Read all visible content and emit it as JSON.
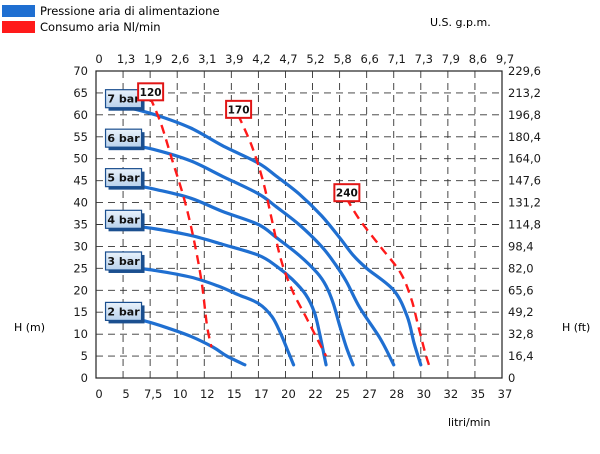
{
  "legend": [
    {
      "label": "Pressione aria di alimentazione",
      "color": "#1f6fd1"
    },
    {
      "label": "Consumo aria Nl/min",
      "color": "#ff1a1a"
    }
  ],
  "chart_data": {
    "type": "line",
    "x_axis_bottom": {
      "label": "litri/min",
      "ticks": [
        "0",
        "5",
        "7,5",
        "10",
        "12",
        "15",
        "17",
        "20",
        "22",
        "25",
        "27",
        "28",
        "30",
        "32",
        "35",
        "37"
      ]
    },
    "x_axis_top": {
      "label": "U.S. g.p.m.",
      "ticks": [
        "0",
        "1,3",
        "1,9",
        "2,6",
        "3,1",
        "3,9",
        "4,2",
        "4,7",
        "5,2",
        "5,8",
        "6,6",
        "7,1",
        "7,3",
        "7,9",
        "8,6",
        "9,7"
      ]
    },
    "y_axis_left": {
      "label": "H (m)",
      "ticks": [
        "70",
        "65",
        "60",
        "55",
        "50",
        "45",
        "40",
        "35",
        "30",
        "25",
        "20",
        "15",
        "10",
        "5",
        "0"
      ],
      "ylim": [
        0,
        70
      ]
    },
    "y_axis_right": {
      "label": "H (ft)",
      "ticks": [
        "229,6",
        "213,2",
        "196,8",
        "180,4",
        "164,0",
        "147,6",
        "131,2",
        "114,8",
        "98,4",
        "82,0",
        "65,6",
        "49,2",
        "32,8",
        "16,4",
        "0"
      ]
    },
    "grid": true,
    "series": [
      {
        "name": "7 bar",
        "kind": "pressure",
        "color": "#1f6fd1",
        "points": [
          [
            2.5,
            63
          ],
          [
            5,
            62
          ],
          [
            8,
            60
          ],
          [
            11,
            57
          ],
          [
            14,
            53
          ],
          [
            17,
            49
          ],
          [
            19,
            46
          ],
          [
            21,
            42
          ],
          [
            23,
            37
          ],
          [
            25,
            32
          ],
          [
            26,
            28
          ],
          [
            27,
            25
          ],
          [
            28,
            20
          ],
          [
            29,
            14
          ],
          [
            29.5,
            8
          ],
          [
            30,
            3
          ]
        ]
      },
      {
        "name": "6 bar",
        "kind": "pressure",
        "color": "#1f6fd1",
        "points": [
          [
            2.5,
            54
          ],
          [
            5,
            53.5
          ],
          [
            8,
            52
          ],
          [
            11,
            49.5
          ],
          [
            14,
            46
          ],
          [
            17,
            42
          ],
          [
            19,
            39
          ],
          [
            21,
            35
          ],
          [
            23,
            30
          ],
          [
            24.5,
            26
          ],
          [
            25.5,
            22
          ],
          [
            26.5,
            16
          ],
          [
            27.5,
            9
          ],
          [
            28,
            3
          ]
        ]
      },
      {
        "name": "5 bar",
        "kind": "pressure",
        "color": "#1f6fd1",
        "points": [
          [
            2.5,
            45
          ],
          [
            5,
            44.5
          ],
          [
            8,
            43
          ],
          [
            11,
            41
          ],
          [
            14,
            38
          ],
          [
            17,
            35
          ],
          [
            19,
            32
          ],
          [
            21,
            28
          ],
          [
            22.5,
            24
          ],
          [
            23.5,
            21
          ],
          [
            24.3,
            17
          ],
          [
            25,
            12
          ],
          [
            25.5,
            7
          ],
          [
            26,
            3
          ]
        ]
      },
      {
        "name": "4 bar",
        "kind": "pressure",
        "color": "#1f6fd1",
        "points": [
          [
            2.5,
            35.5
          ],
          [
            5,
            35
          ],
          [
            8,
            34
          ],
          [
            11,
            32.5
          ],
          [
            14,
            30.5
          ],
          [
            17,
            28
          ],
          [
            19,
            25.5
          ],
          [
            20.5,
            22.5
          ],
          [
            21.5,
            19
          ],
          [
            22.2,
            15
          ],
          [
            22.8,
            10
          ],
          [
            23.3,
            5
          ],
          [
            23.5,
            3
          ]
        ]
      },
      {
        "name": "3 bar",
        "kind": "pressure",
        "color": "#1f6fd1",
        "points": [
          [
            2.5,
            26
          ],
          [
            5,
            25.5
          ],
          [
            8,
            24.5
          ],
          [
            11,
            23
          ],
          [
            13.5,
            21
          ],
          [
            15.5,
            19
          ],
          [
            17,
            17
          ],
          [
            18.5,
            14
          ],
          [
            19.5,
            10
          ],
          [
            20.2,
            6
          ],
          [
            20.6,
            3
          ]
        ]
      },
      {
        "name": "2 bar",
        "kind": "pressure",
        "color": "#1f6fd1",
        "points": [
          [
            2.5,
            14.5
          ],
          [
            5,
            14
          ],
          [
            7,
            13
          ],
          [
            9,
            11.5
          ],
          [
            11,
            9.5
          ],
          [
            13,
            7
          ],
          [
            14.5,
            5
          ],
          [
            16,
            3
          ]
        ]
      },
      {
        "name": "120",
        "kind": "air",
        "color": "#ff1a1a",
        "points": [
          [
            7.5,
            64
          ],
          [
            8.5,
            58
          ],
          [
            9.5,
            50
          ],
          [
            10.5,
            41
          ],
          [
            11.2,
            32
          ],
          [
            11.8,
            22
          ],
          [
            12.3,
            12
          ],
          [
            12.8,
            7
          ]
        ]
      },
      {
        "name": "170",
        "kind": "air",
        "color": "#ff1a1a",
        "points": [
          [
            15.5,
            60
          ],
          [
            16.5,
            53
          ],
          [
            17.5,
            45
          ],
          [
            18.5,
            36
          ],
          [
            19.5,
            27
          ],
          [
            20.5,
            20
          ],
          [
            21.5,
            14
          ],
          [
            22.5,
            9
          ],
          [
            23.5,
            5
          ]
        ]
      },
      {
        "name": "240",
        "kind": "air",
        "color": "#ff1a1a",
        "points": [
          [
            25.5,
            41
          ],
          [
            26.5,
            36
          ],
          [
            27.5,
            30
          ],
          [
            28.5,
            24
          ],
          [
            29.3,
            18
          ],
          [
            29.8,
            12
          ],
          [
            30.3,
            6
          ],
          [
            30.6,
            3
          ]
        ]
      }
    ]
  }
}
